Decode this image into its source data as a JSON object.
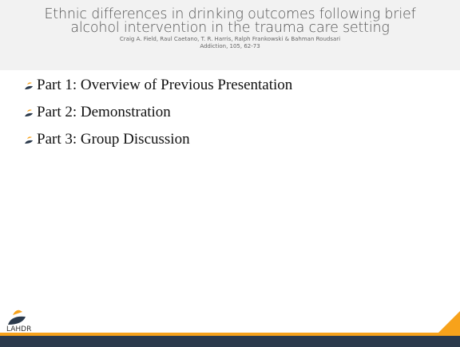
{
  "header": {
    "title": "Ethnic differences in drinking outcomes following brief alcohol intervention in the trauma care setting",
    "authors": "Craig A. Field, Raul Caetano, T. R. Harris, Ralph Frankowski & Bahman Roudsari",
    "citation": "Addiction, 105, 62-73"
  },
  "bullets": [
    "Part 1: Overview of Previous Presentation",
    "Part 2: Demonstration",
    "Part 3: Group Discussion"
  ],
  "logo": {
    "text": "LAHDR"
  }
}
